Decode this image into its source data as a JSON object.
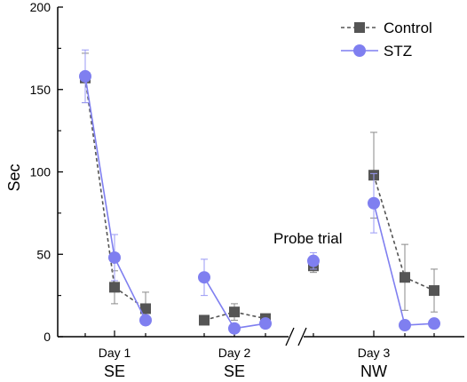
{
  "chart_data": {
    "type": "line",
    "ylabel": "Sec",
    "ylim": [
      0,
      200
    ],
    "y_ticks": [
      0,
      50,
      100,
      150,
      200
    ],
    "x_groups": [
      {
        "day": "Day 1",
        "label": "SE"
      },
      {
        "day": "Day 2",
        "label": "SE"
      },
      {
        "day": "Day 3",
        "label": "NW"
      }
    ],
    "annotation": "Probe trial",
    "axis_break": true,
    "legend_position": "top-right",
    "series": [
      {
        "name": "Control",
        "color": "#555555",
        "marker": "square",
        "line_style": "dashed",
        "segments": [
          [
            {
              "x": 1,
              "y": 157,
              "err": 15
            },
            {
              "x": 2,
              "y": 30,
              "err": 10
            },
            {
              "x": 3,
              "y": 17,
              "err": 10
            }
          ],
          [
            {
              "x": 4,
              "y": 10,
              "err": 2
            },
            {
              "x": 5,
              "y": 15,
              "err": 5
            },
            {
              "x": 6,
              "y": 11,
              "err": 2
            }
          ],
          [
            {
              "x": 7,
              "y": 43,
              "err": 4
            }
          ],
          [
            {
              "x": 8,
              "y": 98,
              "err": 26
            },
            {
              "x": 9,
              "y": 36,
              "err": 20
            },
            {
              "x": 10,
              "y": 28,
              "err": 13
            }
          ]
        ]
      },
      {
        "name": "STZ",
        "color": "#7f7ff0",
        "marker": "circle",
        "line_style": "solid",
        "segments": [
          [
            {
              "x": 1,
              "y": 158,
              "err": 16
            },
            {
              "x": 2,
              "y": 48,
              "err": 14
            },
            {
              "x": 3,
              "y": 10,
              "err": 3
            }
          ],
          [
            {
              "x": 4,
              "y": 36,
              "err": 11
            },
            {
              "x": 5,
              "y": 5,
              "err": 2
            },
            {
              "x": 6,
              "y": 8,
              "err": 2
            }
          ],
          [
            {
              "x": 7,
              "y": 46,
              "err": 5
            }
          ],
          [
            {
              "x": 8,
              "y": 81,
              "err": 18
            },
            {
              "x": 9,
              "y": 7,
              "err": 2
            },
            {
              "x": 10,
              "y": 8,
              "err": 2
            }
          ]
        ]
      }
    ]
  }
}
